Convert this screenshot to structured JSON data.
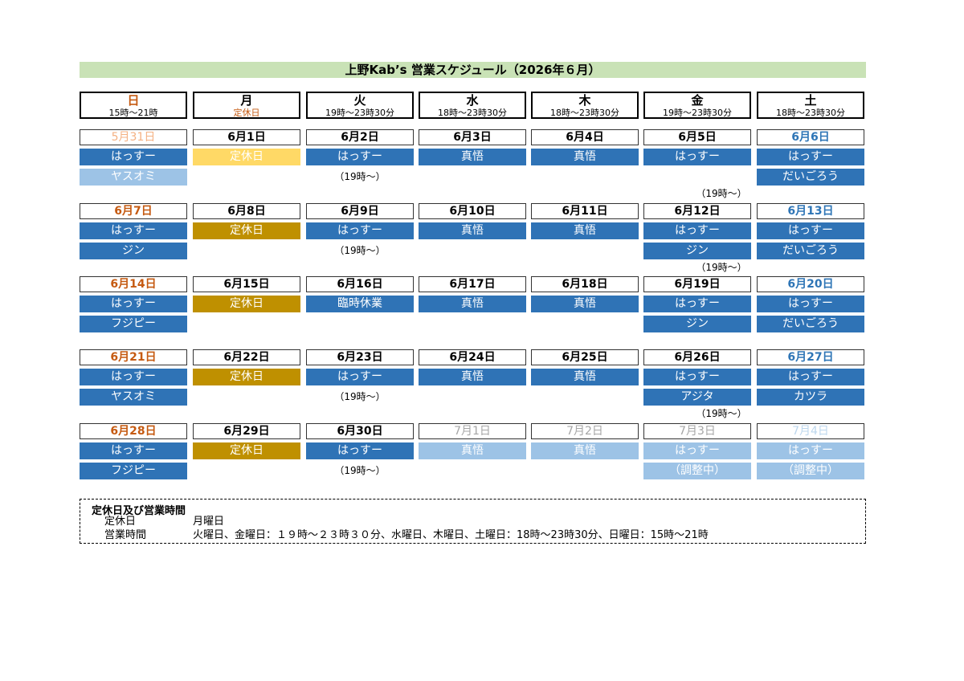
{
  "title": "上野Kab’s 営業スケジュール（2026年６月）",
  "colors": {
    "title_bg": "#c9e2b6",
    "blue": "#2f73b6",
    "light_blue": "#9dc3e6",
    "gold": "#bf9000",
    "yellow": "#ffd966",
    "sunday_text": "#c55a11",
    "saturday_text": "#2e75b6"
  },
  "headers": [
    {
      "day": "日",
      "hours": "15時～21時"
    },
    {
      "day": "月",
      "hours": "定休日"
    },
    {
      "day": "火",
      "hours": "19時～23時30分"
    },
    {
      "day": "水",
      "hours": "18時～23時30分"
    },
    {
      "day": "木",
      "hours": "18時～23時30分"
    },
    {
      "day": "金",
      "hours": "19時～23時30分"
    },
    {
      "day": "土",
      "hours": "18時～23時30分"
    }
  ],
  "weeks": [
    {
      "dates": [
        "5月31日",
        "6月1日",
        "6月2日",
        "6月3日",
        "6月4日",
        "6月5日",
        "6月6日"
      ],
      "row1": [
        "はっすー",
        "定休日",
        "はっすー",
        "真悟",
        "真悟",
        "はっすー",
        "はっすー"
      ],
      "row2": [
        "ヤスオミ",
        "",
        "",
        "",
        "",
        "",
        "だいごろう"
      ],
      "notes": [
        "",
        "",
        "（19時～）",
        "",
        "",
        "",
        ""
      ],
      "bottom_notes": [
        "",
        "",
        "",
        "",
        "",
        "（19時～）",
        ""
      ]
    },
    {
      "dates": [
        "6月7日",
        "6月8日",
        "6月9日",
        "6月10日",
        "6月11日",
        "6月12日",
        "6月13日"
      ],
      "row1": [
        "はっすー",
        "定休日",
        "はっすー",
        "真悟",
        "真悟",
        "はっすー",
        "はっすー"
      ],
      "row2": [
        "ジン",
        "",
        "",
        "",
        "",
        "ジン",
        "だいごろう"
      ],
      "notes": [
        "",
        "",
        "（19時～）",
        "",
        "",
        "",
        ""
      ],
      "bottom_notes": [
        "",
        "",
        "",
        "",
        "",
        "（19時～）",
        ""
      ]
    },
    {
      "dates": [
        "6月14日",
        "6月15日",
        "6月16日",
        "6月17日",
        "6月18日",
        "6月19日",
        "6月20日"
      ],
      "row1": [
        "はっすー",
        "定休日",
        "臨時休業",
        "真悟",
        "真悟",
        "はっすー",
        "はっすー"
      ],
      "row2": [
        "フジピー",
        "",
        "",
        "",
        "",
        "ジン",
        "だいごろう"
      ],
      "notes": [
        "",
        "",
        "",
        "",
        "",
        "",
        ""
      ],
      "bottom_notes": [
        "",
        "",
        "",
        "",
        "",
        "",
        ""
      ]
    },
    {
      "dates": [
        "6月21日",
        "6月22日",
        "6月23日",
        "6月24日",
        "6月25日",
        "6月26日",
        "6月27日"
      ],
      "row1": [
        "はっすー",
        "定休日",
        "はっすー",
        "真悟",
        "真悟",
        "はっすー",
        "はっすー"
      ],
      "row2": [
        "ヤスオミ",
        "",
        "",
        "",
        "",
        "アジタ",
        "カツラ"
      ],
      "notes": [
        "",
        "",
        "（19時～）",
        "",
        "",
        "",
        ""
      ],
      "bottom_notes": [
        "",
        "",
        "",
        "",
        "",
        "（19時～）",
        ""
      ]
    },
    {
      "dates": [
        "6月28日",
        "6月29日",
        "6月30日",
        "7月1日",
        "7月2日",
        "7月3日",
        "7月4日"
      ],
      "row1": [
        "はっすー",
        "定休日",
        "はっすー",
        "真悟",
        "真悟",
        "はっすー",
        "はっすー"
      ],
      "row2": [
        "フジピー",
        "",
        "",
        "",
        "",
        "（調整中）",
        "（調整中）"
      ],
      "notes": [
        "",
        "",
        "（19時～）",
        "",
        "",
        "",
        ""
      ],
      "bottom_notes": [
        "",
        "",
        "",
        "",
        "",
        "",
        ""
      ]
    }
  ],
  "info": {
    "title": "定休日及び営業時間",
    "closed_label": "定休日",
    "closed_value": "月曜日",
    "hours_label": "営業時間",
    "hours_value": "火曜日、金曜日：１９時～２３時３０分、水曜日、木曜日、土曜日：18時～23時30分、日曜日：15時～21時"
  }
}
